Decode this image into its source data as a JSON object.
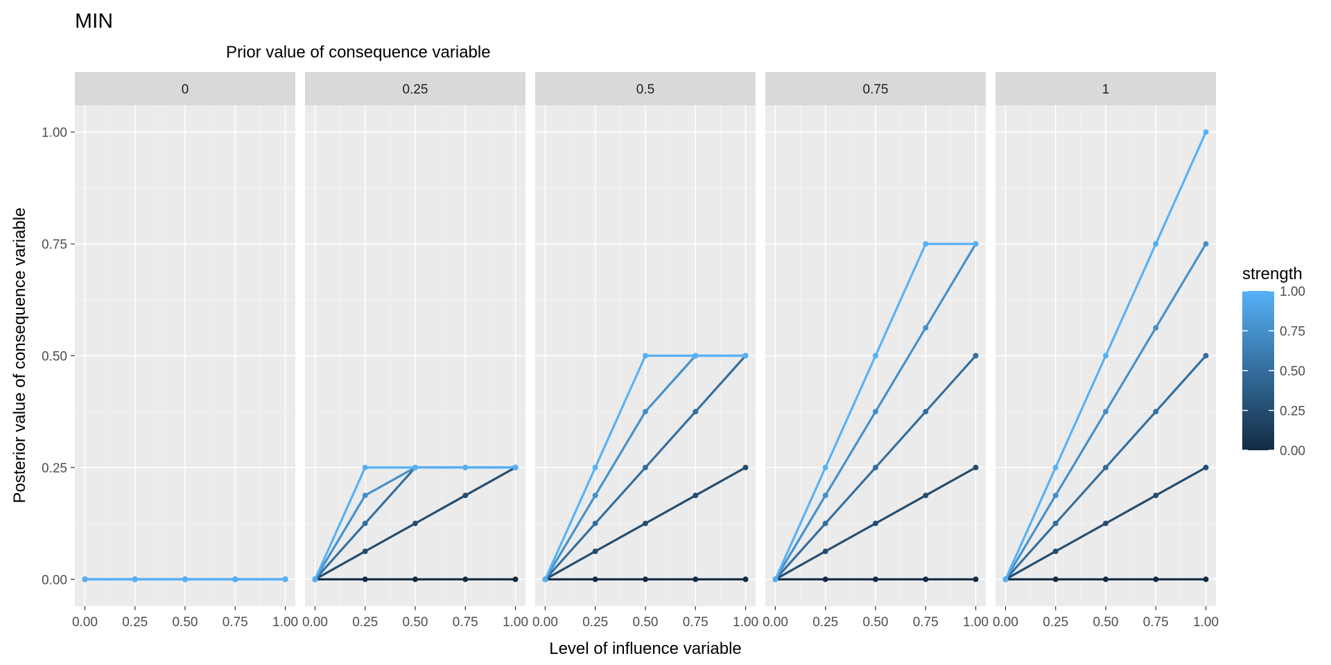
{
  "chart_data": {
    "type": "line",
    "title": "MIN",
    "facet_label": "Prior value of consequence variable",
    "xlabel": "Level of influence variable",
    "ylabel": "Posterior value of consequence variable",
    "x_ticks": [
      "0.00",
      "0.25",
      "0.50",
      "0.75",
      "1.00"
    ],
    "y_ticks": [
      "0.00",
      "0.25",
      "0.50",
      "0.75",
      "1.00"
    ],
    "xlim": [
      -0.05,
      1.05
    ],
    "ylim": [
      -0.06,
      1.06
    ],
    "x": [
      0,
      0.25,
      0.5,
      0.75,
      1
    ],
    "strengths": [
      0,
      0.25,
      0.5,
      0.75,
      1
    ],
    "color_low": "#132b43",
    "color_high": "#56b1f7",
    "grid": true,
    "legend": {
      "title": "strength",
      "position": "right",
      "ticks": [
        "1.00",
        "0.75",
        "0.50",
        "0.25",
        "0.00"
      ]
    },
    "facets": [
      {
        "label": "0",
        "series": [
          {
            "strength": 0,
            "values": [
              0,
              0,
              0,
              0,
              0
            ]
          },
          {
            "strength": 0.25,
            "values": [
              0,
              0,
              0,
              0,
              0
            ]
          },
          {
            "strength": 0.5,
            "values": [
              0,
              0,
              0,
              0,
              0
            ]
          },
          {
            "strength": 0.75,
            "values": [
              0,
              0,
              0,
              0,
              0
            ]
          },
          {
            "strength": 1,
            "values": [
              0,
              0,
              0,
              0,
              0
            ]
          }
        ]
      },
      {
        "label": "0.25",
        "series": [
          {
            "strength": 0,
            "values": [
              0,
              0,
              0,
              0,
              0
            ]
          },
          {
            "strength": 0.25,
            "values": [
              0,
              0.0625,
              0.125,
              0.1875,
              0.25
            ]
          },
          {
            "strength": 0.5,
            "values": [
              0,
              0.125,
              0.25,
              0.25,
              0.25
            ]
          },
          {
            "strength": 0.75,
            "values": [
              0,
              0.1875,
              0.25,
              0.25,
              0.25
            ]
          },
          {
            "strength": 1,
            "values": [
              0,
              0.25,
              0.25,
              0.25,
              0.25
            ]
          }
        ]
      },
      {
        "label": "0.5",
        "series": [
          {
            "strength": 0,
            "values": [
              0,
              0,
              0,
              0,
              0
            ]
          },
          {
            "strength": 0.25,
            "values": [
              0,
              0.0625,
              0.125,
              0.1875,
              0.25
            ]
          },
          {
            "strength": 0.5,
            "values": [
              0,
              0.125,
              0.25,
              0.375,
              0.5
            ]
          },
          {
            "strength": 0.75,
            "values": [
              0,
              0.1875,
              0.375,
              0.5,
              0.5
            ]
          },
          {
            "strength": 1,
            "values": [
              0,
              0.25,
              0.5,
              0.5,
              0.5
            ]
          }
        ]
      },
      {
        "label": "0.75",
        "series": [
          {
            "strength": 0,
            "values": [
              0,
              0,
              0,
              0,
              0
            ]
          },
          {
            "strength": 0.25,
            "values": [
              0,
              0.0625,
              0.125,
              0.1875,
              0.25
            ]
          },
          {
            "strength": 0.5,
            "values": [
              0,
              0.125,
              0.25,
              0.375,
              0.5
            ]
          },
          {
            "strength": 0.75,
            "values": [
              0,
              0.1875,
              0.375,
              0.5625,
              0.75
            ]
          },
          {
            "strength": 1,
            "values": [
              0,
              0.25,
              0.5,
              0.75,
              0.75
            ]
          }
        ]
      },
      {
        "label": "1",
        "series": [
          {
            "strength": 0,
            "values": [
              0,
              0,
              0,
              0,
              0
            ]
          },
          {
            "strength": 0.25,
            "values": [
              0,
              0.0625,
              0.125,
              0.1875,
              0.25
            ]
          },
          {
            "strength": 0.5,
            "values": [
              0,
              0.125,
              0.25,
              0.375,
              0.5
            ]
          },
          {
            "strength": 0.75,
            "values": [
              0,
              0.1875,
              0.375,
              0.5625,
              0.75
            ]
          },
          {
            "strength": 1,
            "values": [
              0,
              0.25,
              0.5,
              0.75,
              1
            ]
          }
        ]
      }
    ]
  }
}
